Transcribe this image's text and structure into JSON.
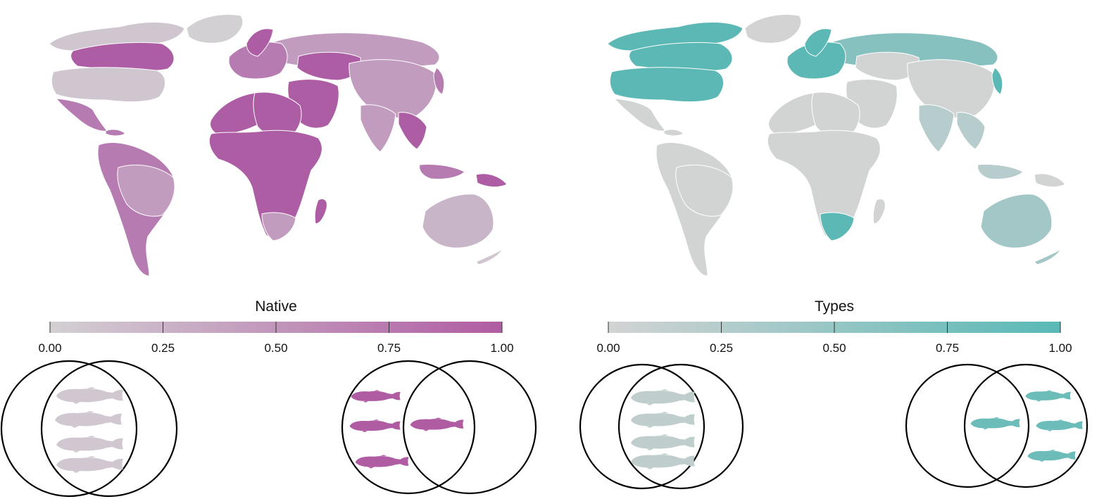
{
  "panels": [
    {
      "id": "native",
      "title": "Native",
      "gradient": {
        "start": "#d3d0d3",
        "end": "#b05ca3"
      },
      "ticks": [
        "0.00",
        "0.25",
        "0.50",
        "0.75",
        "1.00"
      ],
      "colors": {
        "low": "#cfc6cf",
        "lowmid": "#c8b5c7",
        "mid": "#c29cbf",
        "high": "#b67bb0",
        "max": "#ad5da3",
        "missing": "#d3d0d3"
      },
      "venn_low": {
        "fill_color": "#d0c7d0",
        "icon": "fish-silhouette-icon",
        "fish_in_overlap": 4,
        "fish_outside": 0
      },
      "venn_high": {
        "fill_color": "#b05ca3",
        "icon": "fish-silhouette-icon",
        "fish_in_overlap": 1,
        "fish_outside": 3
      }
    },
    {
      "id": "types",
      "title": "Types",
      "gradient": {
        "start": "#d3d3d3",
        "end": "#58b9b6"
      },
      "ticks": [
        "0.00",
        "0.25",
        "0.50",
        "0.75",
        "1.00"
      ],
      "colors": {
        "low": "#d2d4d4",
        "lowmid": "#b7cccc",
        "mid": "#a3c7c6",
        "high": "#86c1bf",
        "max": "#5bb8b5",
        "missing": "#d3d3d3"
      },
      "venn_low": {
        "fill_color": "#bfcdcd",
        "icon": "fish-silhouette-icon",
        "fish_in_overlap": 4,
        "fish_outside": 0
      },
      "venn_high": {
        "fill_color": "#6cbcba",
        "icon": "fish-silhouette-icon",
        "fish_in_overlap": 1,
        "fish_outside": 3
      }
    }
  ]
}
